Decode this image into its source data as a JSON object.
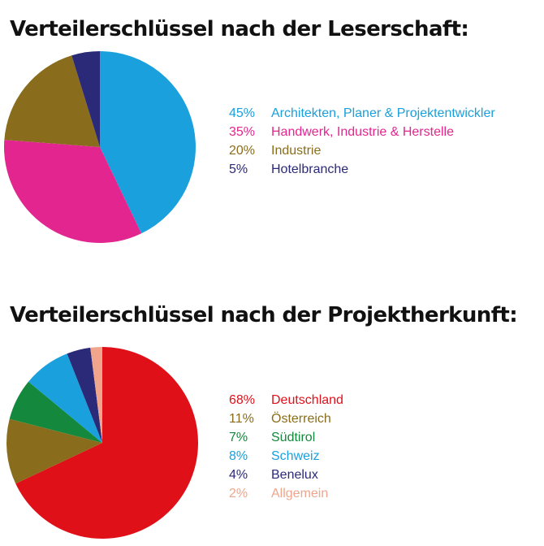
{
  "chart_data": [
    {
      "type": "pie",
      "title": "Verteilerschlüssel nach der Leserschaft:",
      "slices": [
        {
          "pct_label": "45%",
          "label": "Architekten, Planer & Projektentwickler",
          "value": 45,
          "color": "#1aa0dc"
        },
        {
          "pct_label": "35%",
          "label": "Handwerk, Industrie & Herstelle",
          "value": 35,
          "color": "#e3268f"
        },
        {
          "pct_label": "20%",
          "label": "Industrie",
          "value": 20,
          "color": "#8a6d1c"
        },
        {
          "pct_label": "5%",
          "label": "Hotelbranche",
          "value": 5,
          "color": "#2b2a78"
        }
      ],
      "legend_position": "right"
    },
    {
      "type": "pie",
      "title": "Verteilerschlüssel nach der Projektherkunft:",
      "slices": [
        {
          "pct_label": "68%",
          "label": "Deutschland",
          "value": 68,
          "color": "#e01019"
        },
        {
          "pct_label": "11%",
          "label": "Österreich",
          "value": 11,
          "color": "#8a6d1c"
        },
        {
          "pct_label": "7%",
          "label": "Südtirol",
          "value": 7,
          "color": "#14883c"
        },
        {
          "pct_label": "8%",
          "label": "Schweiz",
          "value": 8,
          "color": "#1aa0dc"
        },
        {
          "pct_label": "4%",
          "label": "Benelux",
          "value": 4,
          "color": "#2b2a78"
        },
        {
          "pct_label": "2%",
          "label": "Allgemein",
          "value": 2,
          "color": "#f0a58c"
        }
      ],
      "legend_position": "right"
    }
  ]
}
